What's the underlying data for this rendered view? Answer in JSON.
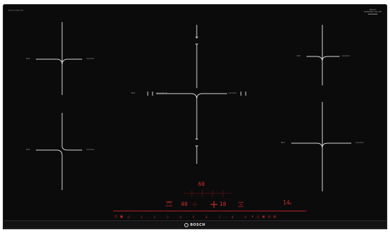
{
  "header": {
    "model": "PXV975DV1E",
    "brand_mark": "BOSCH",
    "brand_sub": "INVENTED FOR LIFE"
  },
  "zones": {
    "left_top": {
      "size_label": "Ø21⁰",
      "type_label": "Induction"
    },
    "left_bottom": {
      "size_label": "Ø21⁰",
      "type_label": "Induction"
    },
    "center": {
      "size_label": "Ø32⁰",
      "mode_label": "PowerBoost",
      "type_label": "Induction"
    },
    "right_top": {
      "size_label": "Ø21⁰",
      "type_label": "Induction"
    },
    "right_bottom": {
      "size_label": "Ø21⁰",
      "type_label": "Induction"
    }
  },
  "display": {
    "top_value": "60",
    "left_value": "40",
    "center_value": "10",
    "right_value": "14",
    "right_unit": "m"
  },
  "control_strip": {
    "left_icons": [
      "power-icon",
      "lock-icon"
    ],
    "power_levels": [
      "0",
      "1",
      "2",
      "3",
      "4",
      "5",
      "6",
      "7",
      "8",
      "9"
    ],
    "right_icons": [
      "boost-icon",
      "frying-icon",
      "timer-icon",
      "keep-warm-icon",
      "flex-icon"
    ],
    "accent_color": "#d2302a"
  },
  "footer": {
    "brand": "BOSCH"
  }
}
